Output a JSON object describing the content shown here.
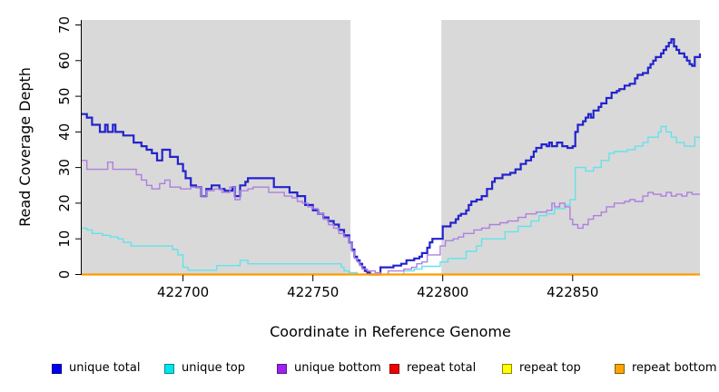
{
  "figure": {
    "plot_bg": "#d9d9d9",
    "mask_color": "#ffffff",
    "axis_color": "#000000"
  },
  "chart_data": {
    "type": "line",
    "step": true,
    "title": "",
    "xlabel": "Coordinate in Reference Genome",
    "ylabel": "Read Coverage Depth",
    "xlim": [
      422661,
      422899
    ],
    "ylim": [
      0,
      70
    ],
    "x_ticks": [
      422700,
      422750,
      422800,
      422850
    ],
    "y_ticks": [
      0,
      10,
      20,
      30,
      40,
      50,
      60,
      70
    ],
    "grid": false,
    "legend_position": "bottom",
    "masked_region": {
      "x_start": 422764.5,
      "x_end": 422799.5
    },
    "series": [
      {
        "name": "unique total",
        "color": "#2323cd",
        "line_width": 2.2,
        "points": [
          [
            422661,
            45
          ],
          [
            422663,
            44
          ],
          [
            422665,
            42
          ],
          [
            422668,
            40
          ],
          [
            422670,
            42
          ],
          [
            422671,
            40
          ],
          [
            422673,
            42
          ],
          [
            422674,
            40
          ],
          [
            422677,
            39
          ],
          [
            422681,
            37
          ],
          [
            422684,
            36
          ],
          [
            422686,
            35
          ],
          [
            422688,
            34
          ],
          [
            422690,
            32
          ],
          [
            422692,
            35
          ],
          [
            422695,
            33
          ],
          [
            422698,
            31
          ],
          [
            422700,
            29
          ],
          [
            422701,
            27
          ],
          [
            422703,
            25
          ],
          [
            422705,
            24.5
          ],
          [
            422707,
            22
          ],
          [
            422709,
            24
          ],
          [
            422711,
            25
          ],
          [
            422714,
            24
          ],
          [
            422716,
            23.5
          ],
          [
            422719,
            24.5
          ],
          [
            422720,
            22
          ],
          [
            422722,
            25
          ],
          [
            422724,
            26
          ],
          [
            422725,
            27
          ],
          [
            422735,
            24.5
          ],
          [
            422741,
            23
          ],
          [
            422744,
            22
          ],
          [
            422747,
            19.5
          ],
          [
            422750,
            18
          ],
          [
            422752,
            17
          ],
          [
            422754,
            16
          ],
          [
            422756,
            15
          ],
          [
            422758,
            14
          ],
          [
            422760,
            12.5
          ],
          [
            422762,
            11
          ],
          [
            422764,
            9
          ],
          [
            422765,
            7
          ],
          [
            422766,
            5
          ],
          [
            422767,
            4
          ],
          [
            422768,
            3
          ],
          [
            422769,
            2
          ],
          [
            422770,
            1
          ],
          [
            422771,
            0.5
          ],
          [
            422772,
            0
          ],
          [
            422776,
            2
          ],
          [
            422781,
            2.5
          ],
          [
            422784,
            3
          ],
          [
            422786,
            4
          ],
          [
            422789,
            4.5
          ],
          [
            422791,
            5
          ],
          [
            422792,
            6
          ],
          [
            422794,
            7.5
          ],
          [
            422795,
            9
          ],
          [
            422796,
            10
          ],
          [
            422800,
            13.5
          ],
          [
            422803,
            14.5
          ],
          [
            422805,
            15.5
          ],
          [
            422806,
            16.5
          ],
          [
            422807,
            17
          ],
          [
            422809,
            18
          ],
          [
            422810,
            19.5
          ],
          [
            422811,
            20.5
          ],
          [
            422813,
            21
          ],
          [
            422815,
            22
          ],
          [
            422817,
            24
          ],
          [
            422819,
            26
          ],
          [
            422820,
            27
          ],
          [
            422823,
            28
          ],
          [
            422826,
            28.5
          ],
          [
            422828,
            29.5
          ],
          [
            422830,
            31
          ],
          [
            422832,
            32
          ],
          [
            422834,
            33
          ],
          [
            422835,
            34.5
          ],
          [
            422836,
            35.5
          ],
          [
            422838,
            36.5
          ],
          [
            422840,
            36
          ],
          [
            422841,
            37
          ],
          [
            422842,
            36
          ],
          [
            422844,
            37
          ],
          [
            422846,
            36
          ],
          [
            422848,
            35.5
          ],
          [
            422850,
            36
          ],
          [
            422851,
            40
          ],
          [
            422852,
            42
          ],
          [
            422854,
            43
          ],
          [
            422855,
            44
          ],
          [
            422856,
            45
          ],
          [
            422857,
            44
          ],
          [
            422858,
            46
          ],
          [
            422860,
            47
          ],
          [
            422861,
            48
          ],
          [
            422863,
            49.5
          ],
          [
            422865,
            51
          ],
          [
            422867,
            51.5
          ],
          [
            422868,
            52
          ],
          [
            422870,
            53
          ],
          [
            422872,
            53.5
          ],
          [
            422874,
            55
          ],
          [
            422875,
            56
          ],
          [
            422877,
            56.5
          ],
          [
            422879,
            58
          ],
          [
            422880,
            59
          ],
          [
            422881,
            60
          ],
          [
            422882,
            61
          ],
          [
            422884,
            62
          ],
          [
            422885,
            63
          ],
          [
            422886,
            64
          ],
          [
            422887,
            65
          ],
          [
            422888,
            66
          ],
          [
            422889,
            64
          ],
          [
            422890,
            63
          ],
          [
            422891,
            62
          ],
          [
            422893,
            61
          ],
          [
            422894,
            60
          ],
          [
            422895,
            59
          ],
          [
            422896,
            58.5
          ],
          [
            422897,
            61
          ],
          [
            422899,
            62
          ]
        ]
      },
      {
        "name": "unique top",
        "color": "#62e3ea",
        "line_width": 1.4,
        "points": [
          [
            422661,
            13
          ],
          [
            422663,
            12.5
          ],
          [
            422665,
            11.5
          ],
          [
            422669,
            11
          ],
          [
            422672,
            10.5
          ],
          [
            422675,
            10
          ],
          [
            422677,
            9
          ],
          [
            422680,
            8
          ],
          [
            422696,
            7
          ],
          [
            422698,
            5.5
          ],
          [
            422700,
            2
          ],
          [
            422702,
            1.2
          ],
          [
            422713,
            2.5
          ],
          [
            422722,
            4
          ],
          [
            422725,
            3
          ],
          [
            422759,
            3
          ],
          [
            422761,
            2
          ],
          [
            422762,
            1
          ],
          [
            422764,
            0.5
          ],
          [
            422767,
            0
          ],
          [
            422785,
            1
          ],
          [
            422789,
            1.5
          ],
          [
            422792,
            2.3
          ],
          [
            422799,
            3.5
          ],
          [
            422802,
            4.5
          ],
          [
            422809,
            6.5
          ],
          [
            422813,
            8
          ],
          [
            422815,
            10
          ],
          [
            422824,
            12
          ],
          [
            422829,
            13.5
          ],
          [
            422834,
            15
          ],
          [
            422837,
            16.5
          ],
          [
            422840,
            17
          ],
          [
            422843,
            18.5
          ],
          [
            422847,
            19.5
          ],
          [
            422849,
            21
          ],
          [
            422851,
            30
          ],
          [
            422855,
            29
          ],
          [
            422858,
            30
          ],
          [
            422861,
            32
          ],
          [
            422864,
            34
          ],
          [
            422866,
            34.5
          ],
          [
            422871,
            35
          ],
          [
            422874,
            36
          ],
          [
            422877,
            37
          ],
          [
            422879,
            38.5
          ],
          [
            422883,
            40
          ],
          [
            422884,
            41.5
          ],
          [
            422886,
            40
          ],
          [
            422888,
            38.5
          ],
          [
            422890,
            37
          ],
          [
            422893,
            36
          ],
          [
            422897,
            38.5
          ],
          [
            422899,
            38.5
          ]
        ]
      },
      {
        "name": "unique bottom",
        "color": "#ad7fe0",
        "line_width": 1.4,
        "points": [
          [
            422661,
            32
          ],
          [
            422663,
            29.5
          ],
          [
            422671,
            31.5
          ],
          [
            422673,
            29.5
          ],
          [
            422682,
            28
          ],
          [
            422684,
            26.5
          ],
          [
            422686,
            25
          ],
          [
            422688,
            24
          ],
          [
            422691,
            25.5
          ],
          [
            422693,
            26.5
          ],
          [
            422695,
            24.5
          ],
          [
            422699,
            24
          ],
          [
            422703,
            24.5
          ],
          [
            422707,
            22
          ],
          [
            422709,
            23.5
          ],
          [
            422712,
            24
          ],
          [
            422715,
            23
          ],
          [
            422718,
            24.5
          ],
          [
            422720,
            21
          ],
          [
            422722,
            23.5
          ],
          [
            422725,
            24
          ],
          [
            422727,
            24.5
          ],
          [
            422733,
            23
          ],
          [
            422739,
            22
          ],
          [
            422742,
            21.5
          ],
          [
            422744,
            20.5
          ],
          [
            422746,
            20
          ],
          [
            422748,
            19
          ],
          [
            422750,
            18.5
          ],
          [
            422752,
            17
          ],
          [
            422754,
            15.5
          ],
          [
            422756,
            14
          ],
          [
            422758,
            13
          ],
          [
            422760,
            11.5
          ],
          [
            422762,
            10.5
          ],
          [
            422764,
            9
          ],
          [
            422765,
            6.5
          ],
          [
            422766,
            4.5
          ],
          [
            422767,
            3.5
          ],
          [
            422768,
            2.5
          ],
          [
            422769,
            1.5
          ],
          [
            422771,
            1
          ],
          [
            422774,
            0.5
          ],
          [
            422776,
            0
          ],
          [
            422779,
            1
          ],
          [
            422785,
            1.5
          ],
          [
            422788,
            2
          ],
          [
            422790,
            3
          ],
          [
            422792,
            3.5
          ],
          [
            422794,
            5.5
          ],
          [
            422799,
            8
          ],
          [
            422801,
            9.5
          ],
          [
            422804,
            10
          ],
          [
            422806,
            10.5
          ],
          [
            422808,
            11.5
          ],
          [
            422812,
            12.5
          ],
          [
            422815,
            13
          ],
          [
            422818,
            14
          ],
          [
            422822,
            14.5
          ],
          [
            422825,
            15
          ],
          [
            422829,
            16
          ],
          [
            422832,
            17
          ],
          [
            422836,
            17.5
          ],
          [
            422840,
            18
          ],
          [
            422842,
            20
          ],
          [
            422843,
            19
          ],
          [
            422845,
            20
          ],
          [
            422847,
            19
          ],
          [
            422849,
            15.5
          ],
          [
            422850,
            14
          ],
          [
            422852,
            13
          ],
          [
            422854,
            14
          ],
          [
            422856,
            15.5
          ],
          [
            422858,
            16.5
          ],
          [
            422861,
            17.5
          ],
          [
            422863,
            19
          ],
          [
            422866,
            20
          ],
          [
            422870,
            20.5
          ],
          [
            422872,
            21
          ],
          [
            422874,
            20.5
          ],
          [
            422877,
            22
          ],
          [
            422879,
            23
          ],
          [
            422881,
            22.5
          ],
          [
            422884,
            22
          ],
          [
            422886,
            23
          ],
          [
            422888,
            22
          ],
          [
            422890,
            22.5
          ],
          [
            422892,
            22
          ],
          [
            422894,
            23
          ],
          [
            422896,
            22.5
          ],
          [
            422899,
            22.5
          ]
        ]
      },
      {
        "name": "repeat total",
        "color": "#dd0000",
        "line_width": 1.4,
        "points": [
          [
            422661,
            0
          ],
          [
            422899,
            0
          ]
        ]
      },
      {
        "name": "repeat top",
        "color": "#eeee00",
        "line_width": 1.4,
        "points": [
          [
            422661,
            0
          ],
          [
            422899,
            0
          ]
        ]
      },
      {
        "name": "repeat bottom",
        "color": "#ff9d00",
        "line_width": 2.2,
        "points": [
          [
            422661,
            0
          ],
          [
            422899,
            0
          ]
        ]
      }
    ]
  },
  "legend": {
    "items": [
      {
        "label": "unique total",
        "fill": "#0000ee",
        "border": "#00008b"
      },
      {
        "label": "unique top",
        "fill": "#00e6ee",
        "border": "#008b8b"
      },
      {
        "label": "unique bottom",
        "fill": "#a020f0",
        "border": "#551a8b"
      },
      {
        "label": "repeat total",
        "fill": "#ee0000",
        "border": "#8b0000"
      },
      {
        "label": "repeat top",
        "fill": "#ffff00",
        "border": "#8b8b00"
      },
      {
        "label": "repeat bottom",
        "fill": "#ffa500",
        "border": "#8b5a00"
      }
    ]
  }
}
